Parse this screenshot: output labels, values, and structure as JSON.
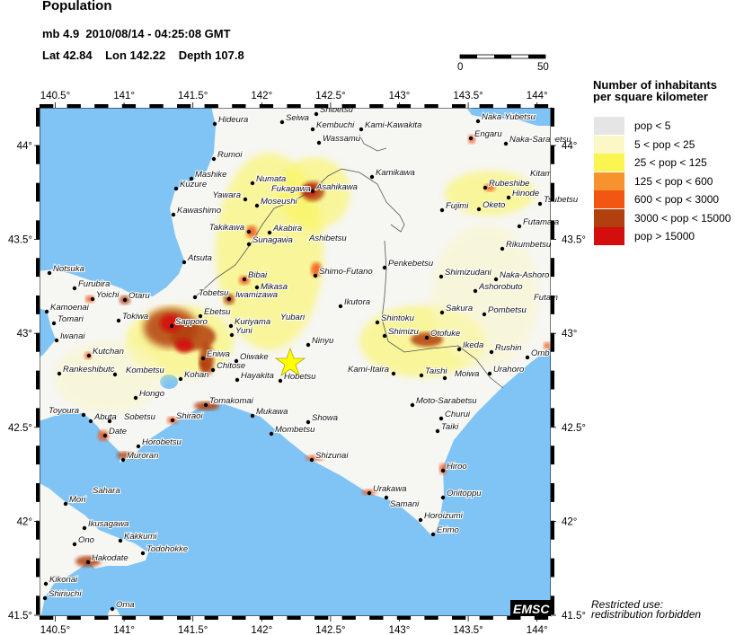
{
  "header": {
    "title": "Population",
    "event_line": "mb 4.9  2010/08/14 - 04:25:08 GMT",
    "location_line": "Lat 42.84    Lon 142.22    Depth 107.8"
  },
  "scale_bar": {
    "start_label": "0",
    "end_label": "50"
  },
  "legend": {
    "title_line1": "Number of inhabitants",
    "title_line2": "per square kilometer",
    "items": [
      {
        "label": "pop < 5",
        "color": "#e5e5e5"
      },
      {
        "label": "5 < pop < 25",
        "color": "#fbf7c6"
      },
      {
        "label": "25 < pop < 125",
        "color": "#fbf552"
      },
      {
        "label": "125 < pop < 600",
        "color": "#f7932f"
      },
      {
        "label": "600 < pop < 3000",
        "color": "#f25612"
      },
      {
        "label": "3000 < pop < 15000",
        "color": "#b2400f"
      },
      {
        "label": "pop > 15000",
        "color": "#d40d0d"
      }
    ]
  },
  "map": {
    "lon_ticks": [
      "140.5°",
      "141°",
      "141.5°",
      "142°",
      "142.5°",
      "143°",
      "143.5°",
      "144°"
    ],
    "lat_ticks": [
      "44°",
      "43.5°",
      "43°",
      "42.5°",
      "42°",
      "41.5°"
    ],
    "sea_color": "#80c4f5",
    "epicenter_marker": "star-icon",
    "epicenter_color": "#ffff00",
    "cities": [
      "Hideura",
      "Rumoi",
      "Mashike",
      "Kuzure",
      "Kawashimo",
      "Atsuta",
      "Notsuka",
      "Numata",
      "Yawara",
      "Fukagawa",
      "Moseushi",
      "Takikawa",
      "Akabira",
      "Ashibetsu",
      "Sunagawa",
      "Bibai",
      "Seiwa",
      "Shibetsu",
      "Kembuchi",
      "Kami-Kawakita",
      "Wassamu",
      "Kamikawa",
      "Asahikawa",
      "Shimo-Futano",
      "Penkebetsu",
      "Fujimi",
      "Shimizudani",
      "Naka-Ashoro",
      "Oketo",
      "Rubeshibe",
      "Hinode",
      "Kitami",
      "Tsubetsu",
      "Futamata",
      "Rikumbetsu",
      "Naka-Yubetsu",
      "Engaru",
      "Naka-Sarabetsu",
      "Furubira",
      "Yoichi",
      "Otaru",
      "Kamoenai",
      "Tomari",
      "Iwanai",
      "Tokiwa",
      "Sapporo",
      "Ebetsu",
      "Tobetsu",
      "Iwamizawa",
      "Mikasa",
      "Kuriyama",
      "Yuni",
      "Yubari",
      "Kutchan",
      "Rankeshibutc",
      "Kombetsu",
      "Eniwa",
      "Chitose",
      "Oiwake",
      "Kohan",
      "Hayakita",
      "Hobetsu",
      "Hongo",
      "Tomakomai",
      "Toyoura",
      "Abuta",
      "Sobetsu",
      "Shiraoi",
      "Date",
      "Horobetsu",
      "Muroran",
      "Mukawa",
      "Mombetsu",
      "Ikutora",
      "Ninyu",
      "Shintoku",
      "Shimizu",
      "Otofuke",
      "Sakura",
      "Pombetsu",
      "Ashorobuto",
      "Futam",
      "Ikeda",
      "Rushin",
      "Omb",
      "Kami-Itaira",
      "Taishi",
      "Moiwa",
      "Urahoro",
      "Moto-Sarabetsu",
      "Churui",
      "Taiki",
      "Showa",
      "Shizunai",
      "Hiroo",
      "Urakawa",
      "Samani",
      "Onitoppu",
      "Horoizumi",
      "Erimo",
      "Mori",
      "Sahara",
      "Ikusagawa",
      "Ono",
      "Kakkumi",
      "Todohokke",
      "Hakodate",
      "Kikonai",
      "Shiriuchi",
      "Oma"
    ]
  },
  "watermark": {
    "logo": "EMSC",
    "line1": "Restricted use:",
    "line2": "redistribution forbidden"
  }
}
